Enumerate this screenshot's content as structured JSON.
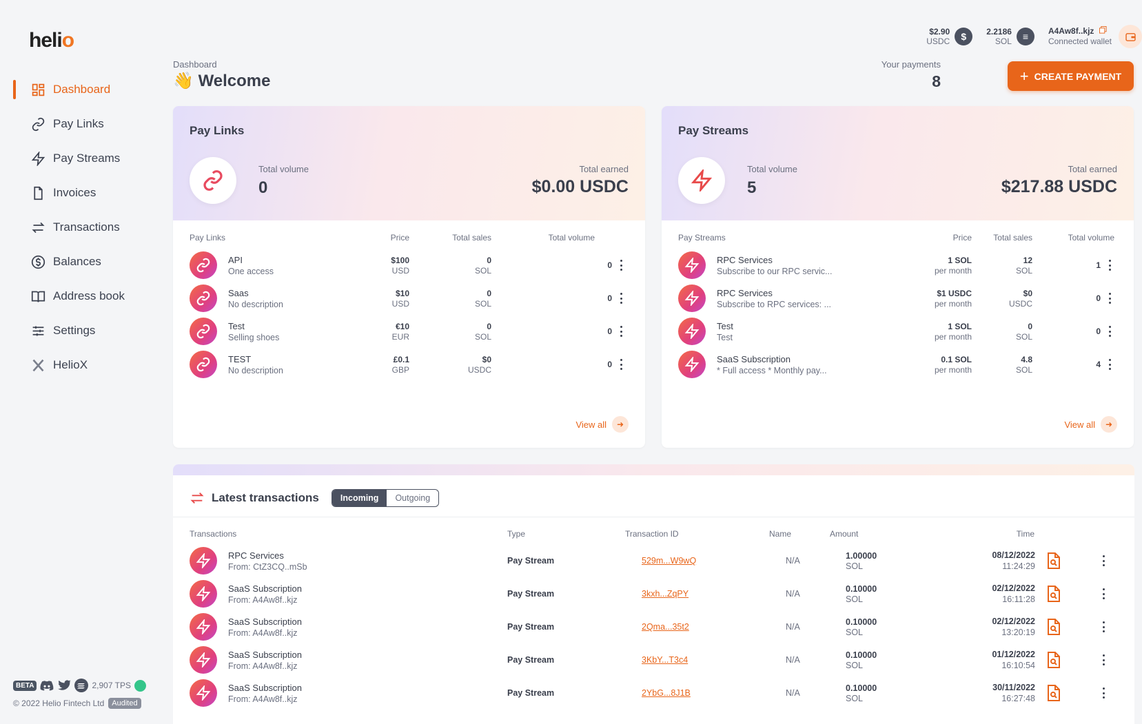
{
  "app": {
    "logo_text": "heli",
    "logo_accent": "o"
  },
  "sidebar": {
    "items": [
      {
        "label": "Dashboard",
        "icon": "dashboard-icon",
        "active": true
      },
      {
        "label": "Pay Links",
        "icon": "link-icon"
      },
      {
        "label": "Pay Streams",
        "icon": "lightning-icon"
      },
      {
        "label": "Invoices",
        "icon": "document-icon"
      },
      {
        "label": "Transactions",
        "icon": "swap-arrows-icon"
      },
      {
        "label": "Balances",
        "icon": "dollar-circle-icon"
      },
      {
        "label": "Address book",
        "icon": "book-icon"
      },
      {
        "label": "Settings",
        "icon": "sliders-icon"
      },
      {
        "label": "HelioX",
        "icon": "x-logo-icon"
      }
    ],
    "footer": {
      "beta": "BETA",
      "tps": "2,907 TPS",
      "copyright": "© 2022 Helio Fintech Ltd",
      "audited": "Audited"
    }
  },
  "topbar": {
    "usdc_amount": "$2.90",
    "usdc_unit": "USDC",
    "sol_amount": "2.2186",
    "sol_unit": "SOL",
    "wallet_address": "A4Aw8f..kjz",
    "wallet_label": "Connected wallet"
  },
  "header": {
    "breadcrumb": "Dashboard",
    "emoji": "👋",
    "title": "Welcome",
    "payments_label": "Your payments",
    "payments_count": "8",
    "create_label": "CREATE PAYMENT"
  },
  "pay_links": {
    "title": "Pay Links",
    "total_volume_label": "Total volume",
    "total_volume": "0",
    "total_earned_label": "Total earned",
    "total_earned": "$0.00 USDC",
    "columns": [
      "Pay Links",
      "Price",
      "Total sales",
      "Total volume"
    ],
    "rows": [
      {
        "name": "API",
        "desc": "One access",
        "price": "$100",
        "price_unit": "USD",
        "sales": "0",
        "sales_unit": "SOL",
        "volume": "0"
      },
      {
        "name": "Saas",
        "desc": "No description",
        "price": "$10",
        "price_unit": "USD",
        "sales": "0",
        "sales_unit": "SOL",
        "volume": "0"
      },
      {
        "name": "Test",
        "desc": "Selling shoes",
        "price": "€10",
        "price_unit": "EUR",
        "sales": "0",
        "sales_unit": "SOL",
        "volume": "0"
      },
      {
        "name": "TEST",
        "desc": "No description",
        "price": "£0.1",
        "price_unit": "GBP",
        "sales": "$0",
        "sales_unit": "USDC",
        "volume": "0"
      }
    ],
    "view_all": "View all"
  },
  "pay_streams": {
    "title": "Pay Streams",
    "total_volume_label": "Total volume",
    "total_volume": "5",
    "total_earned_label": "Total earned",
    "total_earned": "$217.88 USDC",
    "columns": [
      "Pay Streams",
      "Price",
      "Total sales",
      "Total volume"
    ],
    "rows": [
      {
        "name": "RPC Services",
        "desc": "Subscribe to our RPC servic...",
        "price": "1 SOL",
        "price_unit": "per month",
        "sales": "12",
        "sales_unit": "SOL",
        "volume": "1"
      },
      {
        "name": "RPC Services",
        "desc": "Subscribe to RPC services: ...",
        "price": "$1 USDC",
        "price_unit": "per month",
        "sales": "$0",
        "sales_unit": "USDC",
        "volume": "0"
      },
      {
        "name": "Test",
        "desc": "Test",
        "price": "1 SOL",
        "price_unit": "per month",
        "sales": "0",
        "sales_unit": "SOL",
        "volume": "0"
      },
      {
        "name": "SaaS Subscription",
        "desc": "* Full access * Monthly pay...",
        "price": "0.1 SOL",
        "price_unit": "per month",
        "sales": "4.8",
        "sales_unit": "SOL",
        "volume": "4"
      }
    ],
    "view_all": "View all"
  },
  "transactions": {
    "title": "Latest transactions",
    "tab_incoming": "Incoming",
    "tab_outgoing": "Outgoing",
    "columns": [
      "Transactions",
      "Type",
      "Transaction ID",
      "Name",
      "Amount",
      "Time"
    ],
    "rows": [
      {
        "name": "RPC Services",
        "from": "From: CtZ3CQ..mSb",
        "type": "Pay Stream",
        "id": "529m...W9wQ",
        "tname": "N/A",
        "amount": "1.00000",
        "unit": "SOL",
        "date": "08/12/2022",
        "time": "11:24:29"
      },
      {
        "name": "SaaS Subscription",
        "from": "From: A4Aw8f..kjz",
        "type": "Pay Stream",
        "id": "3kxh...ZqPY",
        "tname": "N/A",
        "amount": "0.10000",
        "unit": "SOL",
        "date": "02/12/2022",
        "time": "16:11:28"
      },
      {
        "name": "SaaS Subscription",
        "from": "From: A4Aw8f..kjz",
        "type": "Pay Stream",
        "id": "2Qma...35t2",
        "tname": "N/A",
        "amount": "0.10000",
        "unit": "SOL",
        "date": "02/12/2022",
        "time": "13:20:19"
      },
      {
        "name": "SaaS Subscription",
        "from": "From: A4Aw8f..kjz",
        "type": "Pay Stream",
        "id": "3KbY...T3c4",
        "tname": "N/A",
        "amount": "0.10000",
        "unit": "SOL",
        "date": "01/12/2022",
        "time": "16:10:54"
      },
      {
        "name": "SaaS Subscription",
        "from": "From: A4Aw8f..kjz",
        "type": "Pay Stream",
        "id": "2YbG...8J1B",
        "tname": "N/A",
        "amount": "0.10000",
        "unit": "SOL",
        "date": "30/11/2022",
        "time": "16:27:48"
      }
    ]
  },
  "colors": {
    "accent": "#e8651a",
    "dark": "#3a3f4c"
  }
}
